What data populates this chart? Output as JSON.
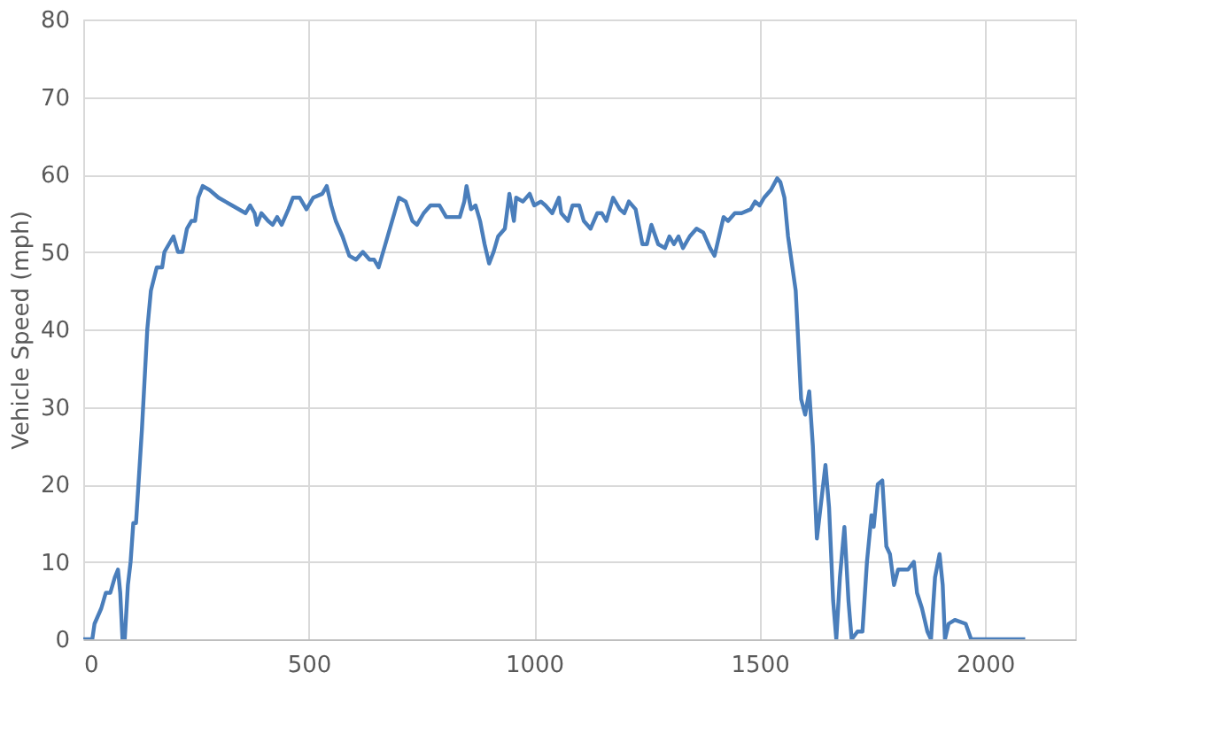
{
  "chart_data": {
    "type": "line",
    "ylabel": "Vehicle Speed (mph)",
    "xlim": [
      0,
      2200
    ],
    "xticks": [
      0,
      500,
      1000,
      1500,
      2000
    ],
    "ylim": [
      0,
      80
    ],
    "yticks": [
      0,
      10,
      20,
      30,
      40,
      50,
      60,
      70,
      80
    ],
    "grid": true,
    "marker": "none",
    "line_style": "solid",
    "x": [
      0,
      20,
      25,
      40,
      50,
      60,
      70,
      77,
      82,
      87,
      92,
      99,
      105,
      111,
      117,
      130,
      142,
      150,
      163,
      175,
      180,
      190,
      200,
      210,
      220,
      230,
      240,
      248,
      255,
      265,
      280,
      300,
      330,
      360,
      370,
      380,
      385,
      395,
      410,
      420,
      430,
      440,
      455,
      465,
      480,
      495,
      510,
      530,
      540,
      550,
      560,
      575,
      590,
      605,
      620,
      635,
      645,
      655,
      665,
      675,
      690,
      700,
      715,
      730,
      740,
      755,
      770,
      790,
      805,
      820,
      835,
      845,
      850,
      860,
      870,
      880,
      890,
      900,
      910,
      920,
      935,
      945,
      955,
      960,
      975,
      990,
      1000,
      1015,
      1025,
      1040,
      1055,
      1060,
      1075,
      1085,
      1100,
      1110,
      1125,
      1140,
      1150,
      1160,
      1175,
      1190,
      1200,
      1210,
      1225,
      1240,
      1250,
      1260,
      1275,
      1290,
      1300,
      1310,
      1320,
      1330,
      1345,
      1360,
      1375,
      1390,
      1400,
      1410,
      1420,
      1430,
      1445,
      1460,
      1480,
      1490,
      1500,
      1510,
      1525,
      1539,
      1546,
      1555,
      1563,
      1580,
      1592,
      1601,
      1610,
      1618,
      1627,
      1635,
      1646,
      1654,
      1663,
      1670,
      1678,
      1688,
      1697,
      1704,
      1717,
      1728,
      1738,
      1748,
      1753,
      1762,
      1772,
      1781,
      1789,
      1798,
      1807,
      1829,
      1842,
      1849,
      1860,
      1872,
      1880,
      1889,
      1899,
      1906,
      1911,
      1919,
      1933,
      1957,
      1969,
      2089
    ],
    "series": [
      {
        "color": "#4a7ebb",
        "values": [
          0,
          0,
          2,
          4,
          6,
          6,
          8,
          9,
          6,
          0,
          0,
          7,
          10,
          15,
          15,
          27,
          40,
          45,
          48,
          48,
          50,
          51,
          52,
          50,
          50,
          53,
          54,
          54,
          57,
          58.5,
          58,
          57,
          56,
          55,
          56,
          55,
          53.5,
          55,
          54,
          53.5,
          54.5,
          53.5,
          55.5,
          57,
          57,
          55.5,
          57,
          57.5,
          58.5,
          56,
          54,
          52,
          49.5,
          49,
          50,
          49,
          49,
          48,
          50,
          52,
          55,
          57,
          56.5,
          54,
          53.5,
          55,
          56,
          56,
          54.5,
          54.5,
          54.5,
          56.5,
          58.5,
          55.5,
          56,
          54,
          51,
          48.5,
          50,
          52,
          53,
          57.5,
          54,
          57,
          56.5,
          57.5,
          56,
          56.5,
          56,
          55,
          57,
          55,
          54,
          56,
          56,
          54,
          53,
          55,
          55,
          54,
          57,
          55.5,
          55,
          56.5,
          55.5,
          51,
          51,
          53.5,
          51,
          50.5,
          52,
          51,
          52,
          50.5,
          52,
          53,
          52.5,
          50.5,
          49.5,
          52,
          54.5,
          54,
          55,
          55,
          55.5,
          56.5,
          56,
          57,
          58,
          59.5,
          59,
          57,
          52,
          45,
          31,
          29,
          32,
          25,
          13,
          17,
          22.5,
          17,
          5,
          0,
          8,
          14.5,
          5,
          0,
          1,
          1,
          10,
          16,
          14.5,
          20,
          20.5,
          12,
          11,
          7,
          9,
          9,
          10,
          6,
          4,
          1,
          0,
          8,
          11,
          7,
          0,
          2,
          2.5,
          2,
          0,
          0
        ]
      }
    ]
  }
}
